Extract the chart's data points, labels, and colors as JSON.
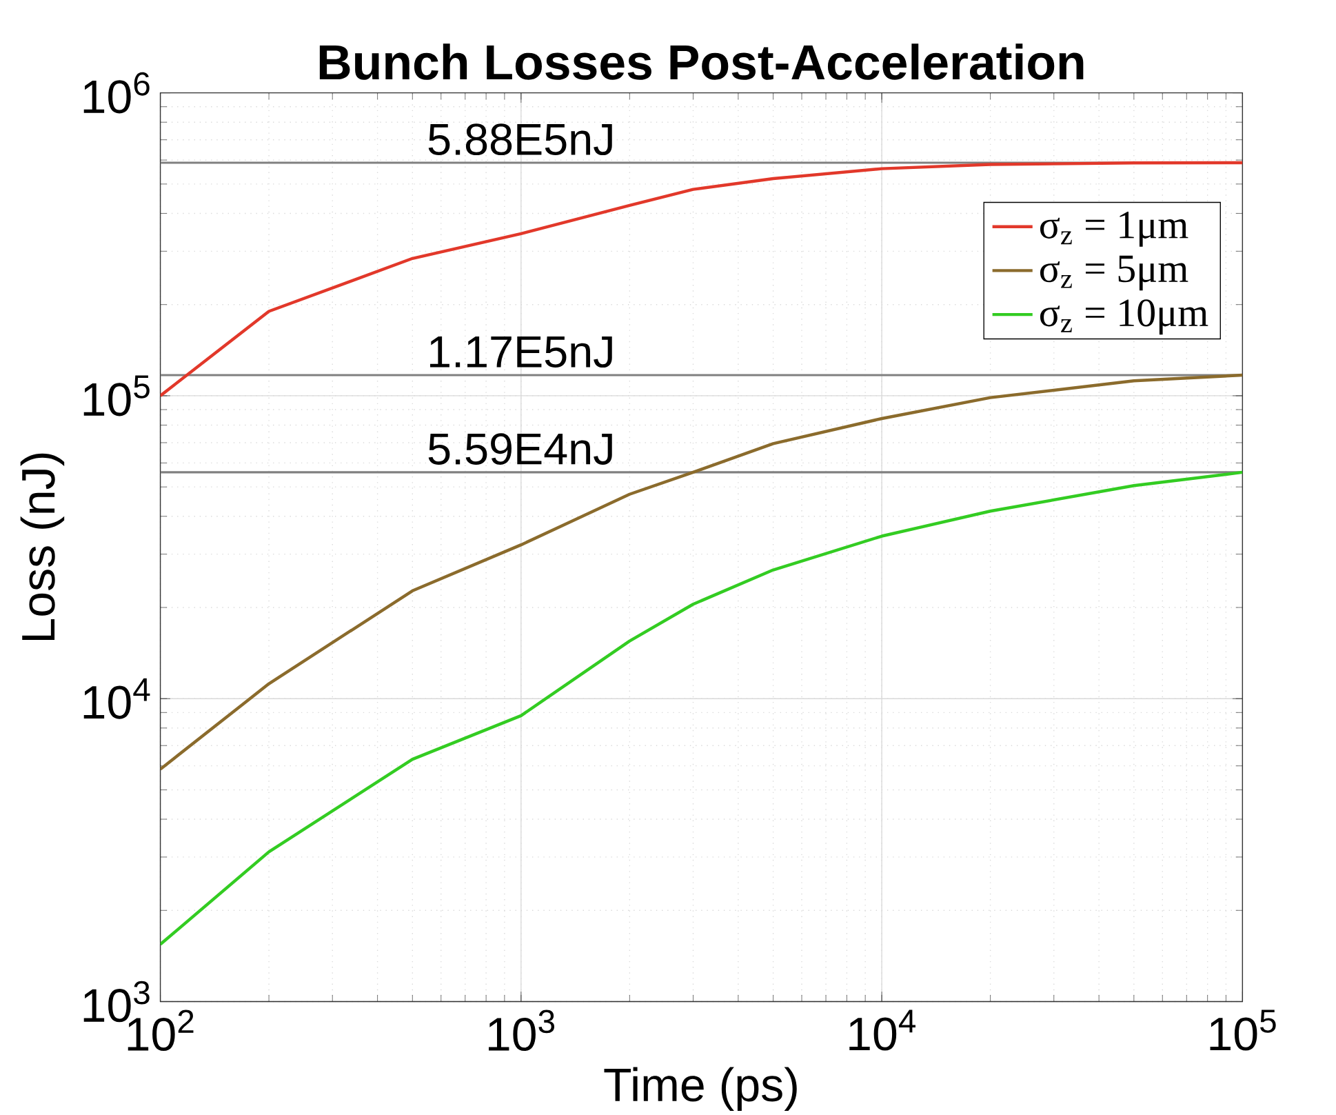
{
  "chart_data": {
    "type": "line",
    "title": "Bunch Losses Post-Acceleration",
    "xlabel": "Time (ps)",
    "ylabel": "Loss (nJ)",
    "log": "xy",
    "grid": true,
    "legend": "top right",
    "line_style": "solid",
    "marker": "none",
    "xlim": [
      100,
      100000
    ],
    "ylim": [
      1000,
      1000000
    ],
    "xticks": [
      {
        "value": 100,
        "label": "10$^{2}$"
      },
      {
        "value": 1000,
        "label": "10$^{3}$"
      },
      {
        "value": 10000,
        "label": "10$^{4}$"
      },
      {
        "value": 100000,
        "label": "10$^{5}$"
      }
    ],
    "yticks": [
      {
        "value": 1000,
        "label": "10$^{3}$"
      },
      {
        "value": 10000,
        "label": "10$^{4}$"
      },
      {
        "value": 100000,
        "label": "10$^{5}$"
      },
      {
        "value": 1000000,
        "label": "10$^{6}$"
      }
    ],
    "x": [
      100,
      200,
      500,
      1000,
      2000,
      3000,
      5000,
      10000,
      20000,
      50000,
      100000
    ],
    "series": [
      {
        "name": "σ$_{z}$ = 1μm",
        "color": "#e2382a",
        "values": [
          100000,
          190000,
          284000,
          343000,
          425000,
          480000,
          521000,
          562000,
          580000,
          587000,
          588000
        ]
      },
      {
        "name": "σ$_{z}$ = 5μm",
        "color": "#8b6b2c",
        "values": [
          5850,
          11200,
          22700,
          32200,
          47300,
          55900,
          69500,
          84100,
          98600,
          112000,
          117000
        ]
      },
      {
        "name": "σ$_{z}$ = 10μm",
        "color": "#33cc22",
        "values": [
          1545,
          3120,
          6310,
          8790,
          15500,
          20500,
          26600,
          34400,
          41600,
          50500,
          55900
        ]
      }
    ],
    "ref_lines": [
      {
        "axis": "y",
        "value": 588000,
        "label": "5.88E5nJ",
        "color": "#808080"
      },
      {
        "axis": "y",
        "value": 117000,
        "label": "1.17E5nJ",
        "color": "#808080"
      },
      {
        "axis": "y",
        "value": 55900,
        "label": "5.59E4nJ",
        "color": "#808080"
      }
    ]
  }
}
